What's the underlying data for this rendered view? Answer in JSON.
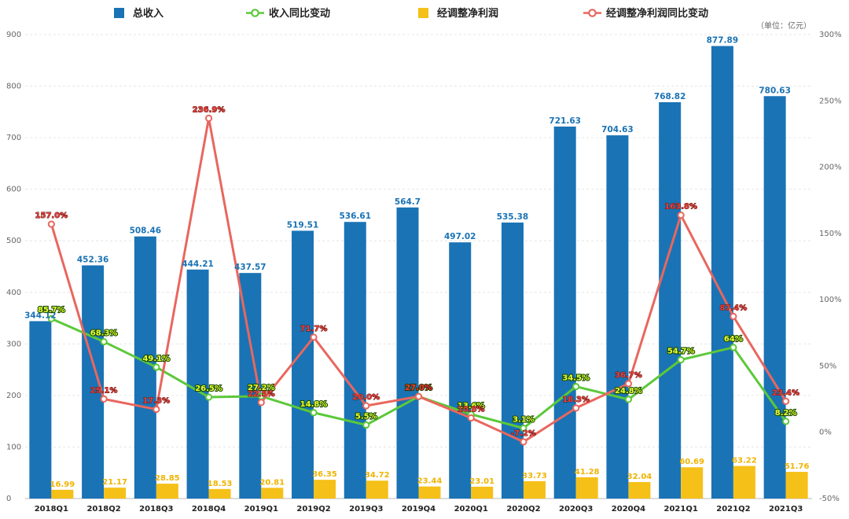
{
  "unit_note": "（单位：亿元）",
  "chart_data": {
    "type": "bar",
    "categories": [
      "2018Q1",
      "2018Q2",
      "2018Q3",
      "2018Q4",
      "2019Q1",
      "2019Q2",
      "2019Q3",
      "2019Q4",
      "2020Q1",
      "2020Q2",
      "2020Q3",
      "2020Q4",
      "2021Q1",
      "2021Q2",
      "2021Q3"
    ],
    "ylim": [
      0,
      900
    ],
    "yticks": [
      0,
      100,
      200,
      300,
      400,
      500,
      600,
      700,
      800,
      900
    ],
    "y2lim": [
      -50,
      300
    ],
    "y2ticks": [
      -50,
      0,
      50,
      100,
      150,
      200,
      250,
      300
    ],
    "y2tick_suffix": "%",
    "legend_position": "top",
    "grid": true,
    "series": [
      {
        "name": "总收入",
        "kind": "bar",
        "axis": "left",
        "color": "#1a73b5",
        "values": [
          344.12,
          452.36,
          508.46,
          444.21,
          437.57,
          519.51,
          536.61,
          564.7,
          497.02,
          535.38,
          721.63,
          704.63,
          768.82,
          877.89,
          780.63
        ],
        "labels": [
          "344.12",
          "452.36",
          "508.46",
          "444.21",
          "437.57",
          "519.51",
          "536.61",
          "564.7",
          "497.02",
          "535.38",
          "721.63",
          "704.63",
          "768.82",
          "877.89",
          "780.63"
        ]
      },
      {
        "name": "收入同比变动",
        "kind": "line",
        "axis": "right",
        "color": "#5cc83a",
        "values": [
          85.7,
          68.3,
          49.1,
          26.5,
          27.2,
          14.8,
          5.5,
          27.0,
          13.6,
          3.1,
          34.5,
          24.8,
          54.7,
          64,
          8.2
        ],
        "labels": [
          "85.7%",
          "68.3%",
          "49.1%",
          "26.5%",
          "27.2%",
          "14.8%",
          "5.5%",
          "27.0%",
          "13.6%",
          "3.1%",
          "34.5%",
          "24.8%",
          "54.7%",
          "64%",
          "8.2%"
        ]
      },
      {
        "name": "经调整净利润",
        "kind": "bar",
        "axis": "left",
        "color": "#f5c018",
        "values": [
          16.99,
          21.17,
          28.85,
          18.53,
          20.81,
          36.35,
          34.72,
          23.44,
          23.01,
          33.73,
          41.28,
          32.04,
          60.69,
          63.22,
          51.76
        ],
        "labels": [
          "16.99",
          "21.17",
          "28.85",
          "18.53",
          "20.81",
          "36.35",
          "34.72",
          "23.44",
          "23.01",
          "33.73",
          "41.28",
          "32.04",
          "60.69",
          "63.22",
          "51.76"
        ]
      },
      {
        "name": "经调整净利润同比变动",
        "kind": "line",
        "axis": "right",
        "color": "#e8675e",
        "values": [
          157.0,
          25.1,
          17.3,
          236.9,
          22.5,
          71.7,
          20.0,
          27.0,
          10.8,
          -7.2,
          18.3,
          36.7,
          163.8,
          87.4,
          23.4
        ],
        "labels": [
          "157.0%",
          "25.1%",
          "17.3%",
          "236.9%",
          "22.5%",
          "71.7%",
          "20.0%",
          "27.0%",
          "10.8%",
          "-7.2%",
          "18.3%",
          "36.7%",
          "163.8%",
          "87.4%",
          "23.4%"
        ]
      }
    ]
  }
}
